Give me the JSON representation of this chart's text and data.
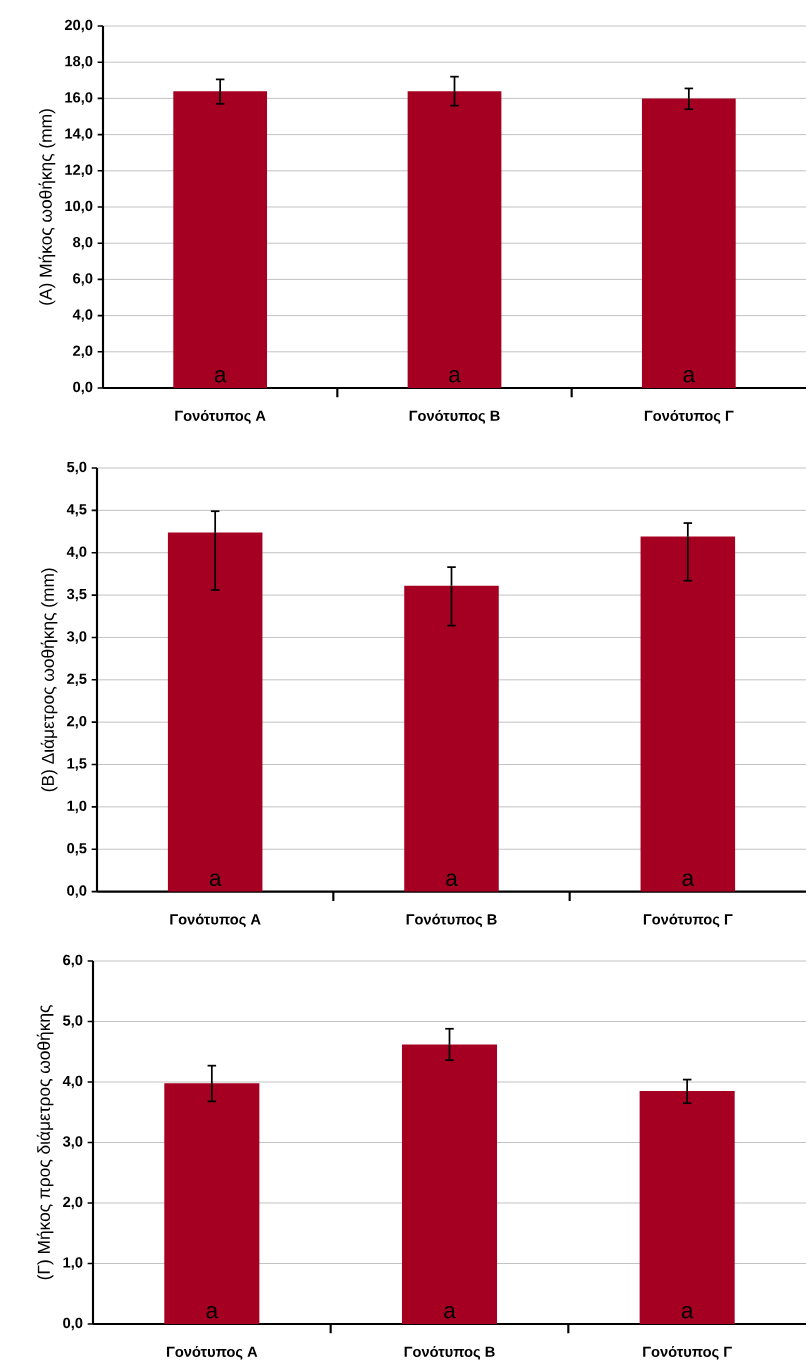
{
  "chart_data": [
    {
      "type": "bar",
      "ylabel": "(Α) Μήκος ωοθήκης (mm)",
      "categories": [
        "Γονότυπος Α",
        "Γονότυπος Β",
        "Γονότυπος Γ"
      ],
      "values": [
        16.4,
        16.4,
        16.0
      ],
      "errors": [
        [
          15.7,
          17.05
        ],
        [
          15.6,
          17.2
        ],
        [
          15.4,
          16.55
        ]
      ],
      "color": "#a50021",
      "ylim": [
        0,
        20
      ],
      "yticks": [
        {
          "value": 0,
          "label": "0,0"
        },
        {
          "value": 2,
          "label": "2,0"
        },
        {
          "value": 4,
          "label": "4,0"
        },
        {
          "value": 6,
          "label": "6,0"
        },
        {
          "value": 8,
          "label": "8,0"
        },
        {
          "value": 10,
          "label": "10,0"
        },
        {
          "value": 12,
          "label": "12,0"
        },
        {
          "value": 14,
          "label": "14,0"
        },
        {
          "value": 16,
          "label": "16,0"
        },
        {
          "value": 18,
          "label": "18,0"
        },
        {
          "value": 20,
          "label": "20,0"
        }
      ],
      "grid": "y",
      "annotations": [
        "a",
        "a",
        "a"
      ]
    },
    {
      "type": "bar",
      "ylabel": "(Β) Διάμετρος ωοθήκης (mm)",
      "categories": [
        "Γονότυπος Α",
        "Γονότυπος Β",
        "Γονότυπος Γ"
      ],
      "values": [
        4.24,
        3.61,
        4.19
      ],
      "errors": [
        [
          3.56,
          4.49
        ],
        [
          3.14,
          3.83
        ],
        [
          3.67,
          4.35
        ]
      ],
      "color": "#a50021",
      "ylim": [
        0,
        5
      ],
      "yticks": [
        {
          "value": 0,
          "label": "0,0"
        },
        {
          "value": 0.5,
          "label": "0,5"
        },
        {
          "value": 1,
          "label": "1,0"
        },
        {
          "value": 1.5,
          "label": "1,5"
        },
        {
          "value": 2,
          "label": "2,0"
        },
        {
          "value": 2.5,
          "label": "2,5"
        },
        {
          "value": 3,
          "label": "3,0"
        },
        {
          "value": 3.5,
          "label": "3,5"
        },
        {
          "value": 4,
          "label": "4,0"
        },
        {
          "value": 4.5,
          "label": "4,5"
        },
        {
          "value": 5,
          "label": "5,0"
        }
      ],
      "grid": "y",
      "annotations": [
        "a",
        "a",
        "a"
      ]
    },
    {
      "type": "bar",
      "ylabel": "(Γ) Μήκος προς διάμετρος ωοθήκης",
      "categories": [
        "Γονότυπος Α",
        "Γονότυπος Β",
        "Γονότυπος Γ"
      ],
      "values": [
        3.98,
        4.62,
        3.85
      ],
      "errors": [
        [
          3.68,
          4.27
        ],
        [
          4.36,
          4.88
        ],
        [
          3.65,
          4.04
        ]
      ],
      "color": "#a50021",
      "ylim": [
        0,
        6
      ],
      "yticks": [
        {
          "value": 0,
          "label": "0,0"
        },
        {
          "value": 1,
          "label": "1,0"
        },
        {
          "value": 2,
          "label": "2,0"
        },
        {
          "value": 3,
          "label": "3,0"
        },
        {
          "value": 4,
          "label": "4,0"
        },
        {
          "value": 5,
          "label": "5,0"
        },
        {
          "value": 6,
          "label": "6,0"
        }
      ],
      "grid": "y",
      "annotations": [
        "a",
        "a",
        "a"
      ]
    }
  ]
}
